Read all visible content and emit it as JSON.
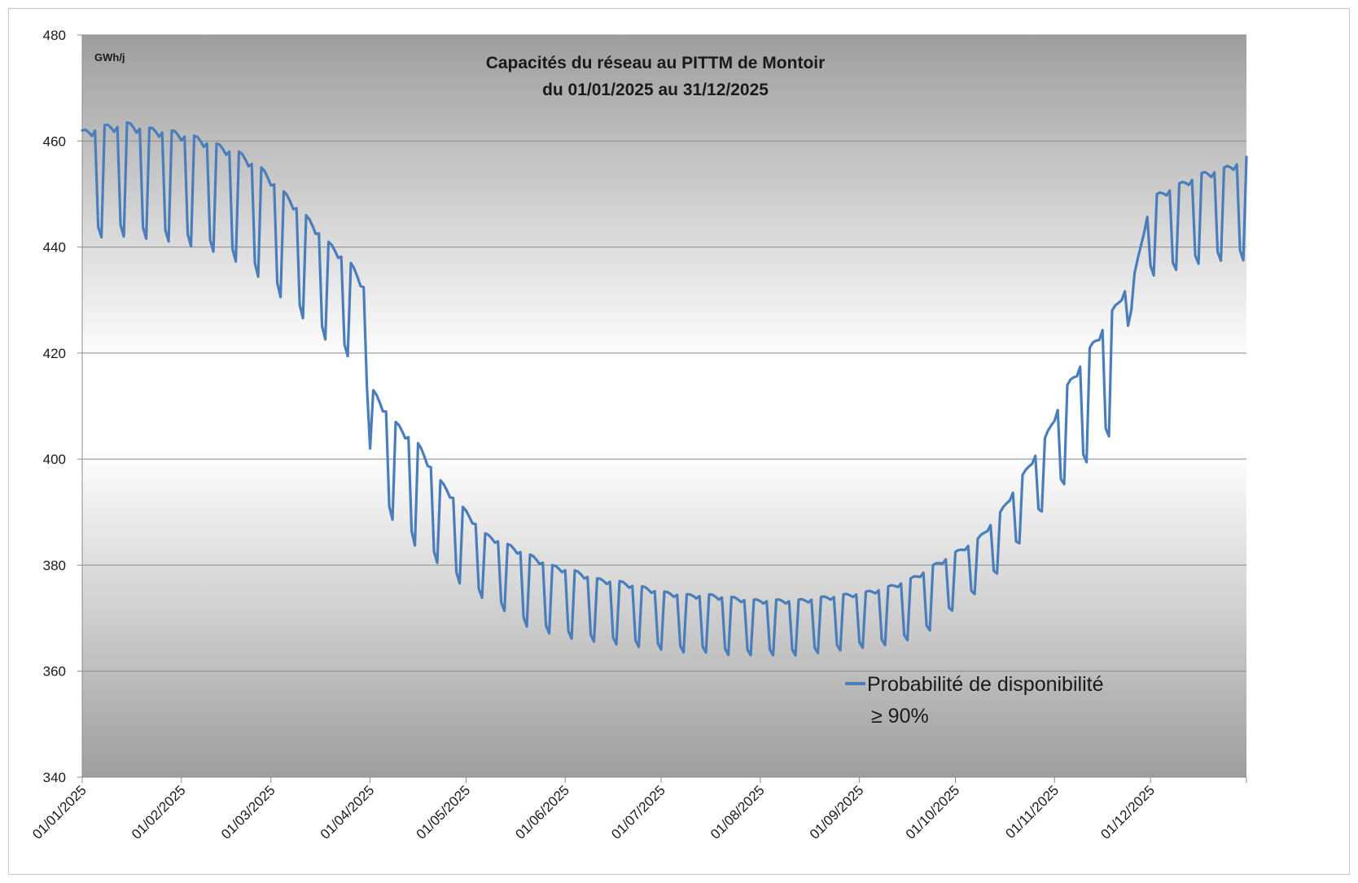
{
  "chart_data": {
    "type": "line",
    "title": "Capacités du réseau au PITTM de Montoir",
    "subtitle": "du 01/01/2025 au 31/12/2025",
    "ylabel": "GWh/j",
    "ylim": [
      340,
      480
    ],
    "yticks": [
      "340",
      "360",
      "380",
      "400",
      "420",
      "440",
      "460",
      "480"
    ],
    "x_start": "2025-01-01",
    "x_end": "2025-12-31",
    "x_ticks": [
      "01/01/2025",
      "01/02/2025",
      "01/03/2025",
      "01/04/2025",
      "01/05/2025",
      "01/06/2025",
      "01/07/2025",
      "01/08/2025",
      "01/09/2025",
      "01/10/2025",
      "01/11/2025",
      "01/12/2025"
    ],
    "grid": true,
    "legend_position": "bottom-right",
    "legend_line1": "Probabilité de disponibilité",
    "legend_line2": "≥ 90%",
    "series": [
      {
        "name": "Probabilité de disponibilité ≥ 90%",
        "color": "#4a7ebb",
        "weekly_pattern": "weekday_high_weekend_low",
        "weekday_x": [
          "2025-01-01",
          "2025-01-08",
          "2025-01-15",
          "2025-01-22",
          "2025-01-29",
          "2025-02-05",
          "2025-02-12",
          "2025-02-19",
          "2025-02-26",
          "2025-03-05",
          "2025-03-12",
          "2025-03-19",
          "2025-03-26",
          "2025-03-31",
          "2025-04-02",
          "2025-04-09",
          "2025-04-16",
          "2025-04-23",
          "2025-04-30",
          "2025-05-07",
          "2025-05-14",
          "2025-05-21",
          "2025-05-28",
          "2025-06-04",
          "2025-06-11",
          "2025-06-18",
          "2025-06-25",
          "2025-07-02",
          "2025-07-09",
          "2025-07-16",
          "2025-07-23",
          "2025-07-30",
          "2025-08-06",
          "2025-08-13",
          "2025-08-20",
          "2025-08-27",
          "2025-09-03",
          "2025-09-10",
          "2025-09-17",
          "2025-09-24",
          "2025-10-01",
          "2025-10-08",
          "2025-10-15",
          "2025-10-22",
          "2025-10-29",
          "2025-11-05",
          "2025-11-12",
          "2025-11-19",
          "2025-11-26",
          "2025-11-30",
          "2025-12-03",
          "2025-12-10",
          "2025-12-17",
          "2025-12-24",
          "2025-12-31"
        ],
        "weekday_y": [
          462,
          463,
          463.5,
          462.5,
          462,
          461,
          459.5,
          458,
          455,
          450.5,
          446,
          441,
          437,
          432,
          413,
          407,
          403,
          396,
          391,
          386,
          384,
          382,
          380,
          379,
          377.5,
          377,
          376,
          375,
          374.5,
          374.5,
          374,
          373.5,
          373.5,
          373.5,
          374,
          374.5,
          375,
          376,
          377.5,
          380,
          382.5,
          385,
          390,
          397,
          404,
          414,
          421,
          428,
          435,
          446,
          450,
          452,
          454,
          455,
          457
        ],
        "weekend_x": [
          "2025-01-01",
          "2025-01-08",
          "2025-01-15",
          "2025-01-22",
          "2025-01-29",
          "2025-02-05",
          "2025-02-12",
          "2025-02-19",
          "2025-02-26",
          "2025-03-05",
          "2025-03-12",
          "2025-03-19",
          "2025-03-26",
          "2025-03-31",
          "2025-04-02",
          "2025-04-09",
          "2025-04-16",
          "2025-04-23",
          "2025-04-30",
          "2025-05-07",
          "2025-05-14",
          "2025-05-21",
          "2025-05-28",
          "2025-06-04",
          "2025-06-11",
          "2025-06-18",
          "2025-06-25",
          "2025-07-02",
          "2025-07-09",
          "2025-07-16",
          "2025-07-23",
          "2025-07-30",
          "2025-08-06",
          "2025-08-13",
          "2025-08-20",
          "2025-08-27",
          "2025-09-03",
          "2025-09-10",
          "2025-09-17",
          "2025-09-24",
          "2025-10-01",
          "2025-10-08",
          "2025-10-15",
          "2025-10-22",
          "2025-10-29",
          "2025-11-05",
          "2025-11-12",
          "2025-11-19",
          "2025-11-26",
          "2025-11-30",
          "2025-12-03",
          "2025-12-10",
          "2025-12-17",
          "2025-12-24",
          "2025-12-31"
        ],
        "weekend_y": [
          441,
          442,
          442,
          441.5,
          441,
          440,
          439,
          437,
          434,
          430,
          426,
          422,
          419,
          412,
          392,
          388,
          383,
          380,
          376,
          373.5,
          371,
          368,
          367,
          366,
          365.5,
          365,
          364.5,
          364,
          363.5,
          363.5,
          363,
          363,
          363,
          363,
          363.5,
          364,
          364.5,
          365,
          366,
          368,
          372,
          375,
          379,
          385,
          391,
          396,
          400,
          405,
          432,
          436,
          434,
          436,
          437,
          437.5,
          437.5
        ]
      }
    ]
  }
}
